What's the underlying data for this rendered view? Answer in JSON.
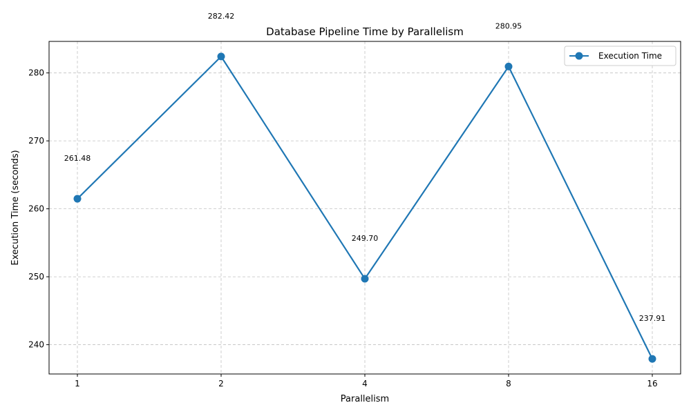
{
  "chart_data": {
    "type": "line",
    "title": "Database Pipeline Time by Parallelism",
    "xlabel": "Parallelism",
    "ylabel": "Execution Time (seconds)",
    "categories": [
      "1",
      "2",
      "4",
      "8",
      "16"
    ],
    "series": [
      {
        "name": "Execution Time",
        "values": [
          261.48,
          282.42,
          249.7,
          280.95,
          237.91
        ],
        "data_labels": [
          "261.48",
          "282.42",
          "249.70",
          "280.95",
          "237.91"
        ],
        "color": "#1f77b4"
      }
    ],
    "ylim": [
      235.69,
      284.64
    ],
    "yticks": [
      240,
      250,
      260,
      270,
      280
    ],
    "ytick_labels": [
      "240",
      "250",
      "260",
      "270",
      "280"
    ],
    "grid": true,
    "legend_position": "top-right"
  }
}
